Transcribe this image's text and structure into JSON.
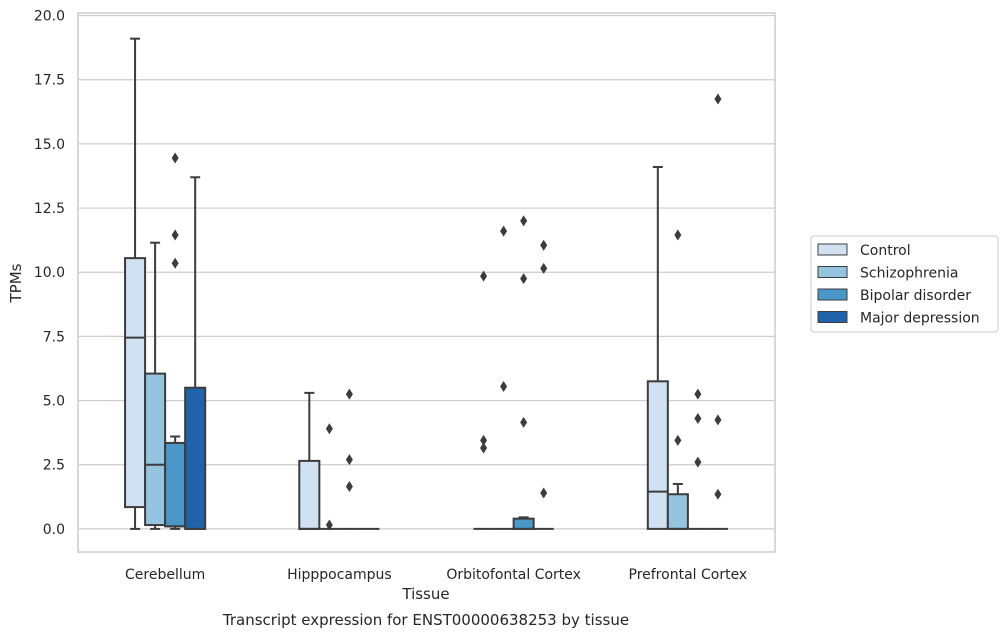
{
  "chart_data": {
    "type": "box",
    "xlabel": "Tissue",
    "ylabel": "TPMs",
    "caption": "Transcript expression for ENST00000638253 by tissue",
    "ylim": [
      -0.9,
      20.1
    ],
    "yticks": [
      0.0,
      2.5,
      5.0,
      7.5,
      10.0,
      12.5,
      15.0,
      17.5,
      20.0
    ],
    "ytick_labels": [
      "0.0",
      "2.5",
      "5.0",
      "7.5",
      "10.0",
      "12.5",
      "15.0",
      "17.5",
      "20.0"
    ],
    "grid": "horizontal",
    "legend_position": "right",
    "categories": [
      "Cerebellum",
      "Hipppocampus",
      "Orbitofontal Cortex",
      "Prefrontal Cortex"
    ],
    "series": [
      {
        "name": "Control",
        "color": "#d0e1f2",
        "boxes": [
          {
            "whislo": 0.0,
            "q1": 0.85,
            "med": 7.45,
            "q3": 10.55,
            "whishi": 19.1,
            "fliers": []
          },
          {
            "whislo": 0.0,
            "q1": 0.0,
            "med": 0.0,
            "q3": 2.65,
            "whishi": 5.3,
            "fliers": []
          },
          {
            "whislo": 0.0,
            "q1": 0.0,
            "med": 0.0,
            "q3": 0.0,
            "whishi": 0.0,
            "fliers": [
              9.85,
              3.45,
              3.15
            ]
          },
          {
            "whislo": 0.0,
            "q1": 0.0,
            "med": 1.45,
            "q3": 5.75,
            "whishi": 14.1,
            "fliers": []
          }
        ]
      },
      {
        "name": "Schizophrenia",
        "color": "#94c4df",
        "boxes": [
          {
            "whislo": 0.0,
            "q1": 0.15,
            "med": 2.5,
            "q3": 6.05,
            "whishi": 11.15,
            "fliers": []
          },
          {
            "whislo": 0.0,
            "q1": 0.0,
            "med": 0.0,
            "q3": 0.0,
            "whishi": 0.0,
            "fliers": [
              3.9,
              0.15
            ]
          },
          {
            "whislo": 0.0,
            "q1": 0.0,
            "med": 0.0,
            "q3": 0.0,
            "whishi": 0.0,
            "fliers": [
              11.6,
              5.55
            ]
          },
          {
            "whislo": 0.0,
            "q1": 0.0,
            "med": 0.0,
            "q3": 1.35,
            "whishi": 1.75,
            "fliers": [
              11.45,
              3.45
            ]
          }
        ]
      },
      {
        "name": "Bipolar disorder",
        "color": "#4a98c9",
        "boxes": [
          {
            "whislo": 0.0,
            "q1": 0.1,
            "med": 0.1,
            "q3": 3.35,
            "whishi": 3.6,
            "fliers": [
              14.45,
              11.45,
              10.35
            ]
          },
          {
            "whislo": 0.0,
            "q1": 0.0,
            "med": 0.0,
            "q3": 0.0,
            "whishi": 0.0,
            "fliers": [
              5.25,
              2.7,
              1.65
            ]
          },
          {
            "whislo": 0.0,
            "q1": 0.0,
            "med": 0.0,
            "q3": 0.4,
            "whishi": 0.45,
            "fliers": [
              12.0,
              9.75,
              4.15
            ]
          },
          {
            "whislo": 0.0,
            "q1": 0.0,
            "med": 0.0,
            "q3": 0.0,
            "whishi": 0.0,
            "fliers": [
              5.25,
              4.3,
              2.6
            ]
          }
        ]
      },
      {
        "name": "Major depression",
        "color": "#2163aa",
        "boxes": [
          {
            "whislo": 0.0,
            "q1": 0.0,
            "med": 0.0,
            "q3": 5.5,
            "whishi": 13.7,
            "fliers": []
          },
          {
            "whislo": 0.0,
            "q1": 0.0,
            "med": 0.0,
            "q3": 0.0,
            "whishi": 0.0,
            "fliers": []
          },
          {
            "whislo": 0.0,
            "q1": 0.0,
            "med": 0.0,
            "q3": 0.0,
            "whishi": 0.0,
            "fliers": [
              11.05,
              10.15,
              1.4
            ]
          },
          {
            "whislo": 0.0,
            "q1": 0.0,
            "med": 0.0,
            "q3": 0.0,
            "whishi": 0.0,
            "fliers": [
              16.75,
              4.25,
              1.35
            ]
          }
        ]
      }
    ]
  }
}
